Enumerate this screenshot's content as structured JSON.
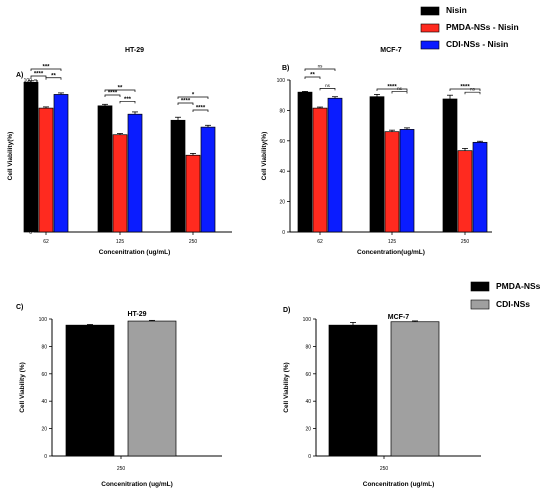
{
  "legend_top": [
    {
      "name": "Nisin",
      "color": "#000000"
    },
    {
      "name": "PMDA-NSs - Nisin",
      "color": "#ff2a1f"
    },
    {
      "name": "CDI-NSs - Nisin",
      "color": "#0a1cff"
    }
  ],
  "legend_bottom": [
    {
      "name": "PMDA-NSs",
      "color": "#000000"
    },
    {
      "name": "CDI-NSs",
      "color": "#a0a0a0"
    }
  ],
  "chart_data": [
    {
      "panel": "A)",
      "type": "bar",
      "title": "HT-29",
      "xlabel": "Concenitration (ug/mL)",
      "ylabel": "Cell Viability(%)",
      "categories": [
        "62",
        "125",
        "250"
      ],
      "ylim": [
        0,
        100
      ],
      "yticks": [
        "0",
        "20",
        "40",
        "60",
        "80",
        "100"
      ],
      "series": [
        {
          "name": "Nisin",
          "values": [
            98.5,
            83,
            73.5
          ],
          "errors": [
            1.0,
            1.0,
            2.0
          ]
        },
        {
          "name": "PMDA-NSs - Nisin",
          "values": [
            81.5,
            64,
            50.5
          ],
          "errors": [
            0.8,
            0.8,
            1.2
          ]
        },
        {
          "name": "CDI-NSs - Nisin",
          "values": [
            90.5,
            77.5,
            69
          ],
          "errors": [
            1.0,
            1.5,
            1.2
          ]
        }
      ],
      "significance": [
        {
          "label": "***",
          "from": "Nisin",
          "to": "CDI-NSs - Nisin",
          "category": "62",
          "level": 3
        },
        {
          "label": "****",
          "from": "Nisin",
          "to": "PMDA-NSs - Nisin",
          "category": "62",
          "level": 2
        },
        {
          "label": "**",
          "from": "PMDA-NSs - Nisin",
          "to": "CDI-NSs - Nisin",
          "category": "62",
          "level": 1
        },
        {
          "label": "**",
          "from": "Nisin",
          "to": "CDI-NSs - Nisin",
          "category": "125",
          "level": 3
        },
        {
          "label": "****",
          "from": "Nisin",
          "to": "PMDA-NSs - Nisin",
          "category": "125",
          "level": 2
        },
        {
          "label": "***",
          "from": "PMDA-NSs - Nisin",
          "to": "CDI-NSs - Nisin",
          "category": "125",
          "level": 1
        },
        {
          "label": "*",
          "from": "Nisin",
          "to": "CDI-NSs - Nisin",
          "category": "250",
          "level": 3
        },
        {
          "label": "****",
          "from": "Nisin",
          "to": "PMDA-NSs - Nisin",
          "category": "250",
          "level": 2
        },
        {
          "label": "****",
          "from": "PMDA-NSs - Nisin",
          "to": "CDI-NSs - Nisin",
          "category": "250",
          "level": 1
        }
      ]
    },
    {
      "panel": "B)",
      "type": "bar",
      "title": "MCF-7",
      "xlabel": "Concentration(ug/mL)",
      "ylabel": "Cell Viability(%)",
      "categories": [
        "62",
        "125",
        "250"
      ],
      "ylim": [
        0,
        100
      ],
      "yticks": [
        "0",
        "20",
        "40",
        "60",
        "80",
        "100"
      ],
      "series": [
        {
          "name": "Nisin",
          "values": [
            92,
            89,
            87.5
          ],
          "errors": [
            0.5,
            1.5,
            2.5
          ]
        },
        {
          "name": "PMDA-NSs - Nisin",
          "values": [
            81.5,
            66,
            53.5
          ],
          "errors": [
            0.7,
            1.0,
            1.5
          ]
        },
        {
          "name": "CDI-NSs - Nisin",
          "values": [
            88,
            67.5,
            59
          ],
          "errors": [
            1.0,
            1.0,
            0.7
          ]
        }
      ],
      "significance": [
        {
          "label": "ns",
          "from": "Nisin",
          "to": "CDI-NSs - Nisin",
          "category": "62",
          "level": 3
        },
        {
          "label": "**",
          "from": "Nisin",
          "to": "PMDA-NSs - Nisin",
          "category": "62",
          "level": 2
        },
        {
          "label": "ns",
          "from": "PMDA-NSs - Nisin",
          "to": "CDI-NSs - Nisin",
          "category": "62",
          "level": 1
        },
        {
          "label": "****",
          "from": "Nisin",
          "to": "CDI-NSs - Nisin",
          "category": "125",
          "level": 2
        },
        {
          "label": "ns",
          "from": "PMDA-NSs - Nisin",
          "to": "CDI-NSs - Nisin",
          "category": "125",
          "level": 1
        },
        {
          "label": "****",
          "from": "Nisin",
          "to": "CDI-NSs - Nisin",
          "category": "250",
          "level": 2
        },
        {
          "label": "ns",
          "from": "PMDA-NSs - Nisin",
          "to": "CDI-NSs - Nisin",
          "category": "250",
          "level": 1
        }
      ]
    },
    {
      "panel": "C)",
      "type": "bar",
      "title": "HT-29",
      "xlabel": "Concenitration (ug/mL)",
      "ylabel": "Cell Viability (%)",
      "categories": [
        "250"
      ],
      "ylim": [
        0,
        100
      ],
      "yticks": [
        "0",
        "20",
        "40",
        "60",
        "80",
        "100"
      ],
      "series": [
        {
          "name": "PMDA-NSs",
          "values": [
            95.5
          ],
          "errors": [
            0.5
          ]
        },
        {
          "name": "CDI-NSs",
          "values": [
            98.5
          ],
          "errors": [
            0.5
          ]
        }
      ]
    },
    {
      "panel": "D)",
      "type": "bar",
      "title": "MCF-7",
      "xlabel": "Concenitration (ug/mL)",
      "ylabel": "Cell Viability (%)",
      "categories": [
        "250"
      ],
      "ylim": [
        0,
        100
      ],
      "yticks": [
        "0",
        "20",
        "40",
        "60",
        "80",
        "100"
      ],
      "series": [
        {
          "name": "PMDA-NSs",
          "values": [
            95.5
          ],
          "errors": [
            2.0
          ]
        },
        {
          "name": "CDI-NSs",
          "values": [
            98
          ],
          "errors": [
            0.6
          ]
        }
      ]
    }
  ]
}
